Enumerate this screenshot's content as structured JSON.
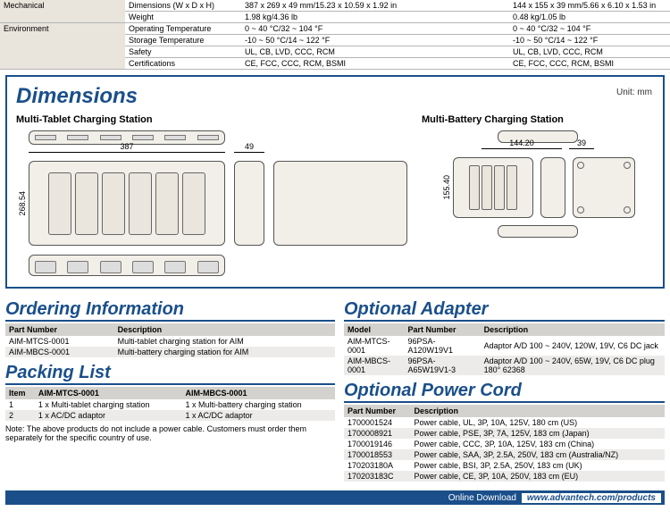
{
  "spec": {
    "rows": [
      {
        "cat": "Mechanical",
        "label": "Dimensions (W x D x H)",
        "v1": "387 x 269 x 49 mm/15.23 x 10.59 x 1.92 in",
        "v2": "144 x 155 x 39 mm/5.66 x 6.10 x 1.53 in"
      },
      {
        "cat": "",
        "label": "Weight",
        "v1": "1.98 kg/4.36 lb",
        "v2": "0.48 kg/1.05 lb"
      },
      {
        "cat": "Environment",
        "label": "Operating Temperature",
        "v1": "0 ~ 40 °C/32 ~ 104 °F",
        "v2": "0 ~ 40 °C/32 ~ 104 °F"
      },
      {
        "cat": "",
        "label": "Storage Temperature",
        "v1": "-10 ~ 50 °C/14 ~ 122 °F",
        "v2": "-10 ~ 50 °C/14 ~ 122 °F"
      },
      {
        "cat": "",
        "label": "Safety",
        "v1": "UL, CB, LVD, CCC, RCM",
        "v2": "UL, CB, LVD, CCC, RCM"
      },
      {
        "cat": "",
        "label": "Certifications",
        "v1": "CE, FCC, CCC, RCM, BSMI",
        "v2": "CE, FCC, CCC, RCM, BSMI"
      }
    ]
  },
  "dim": {
    "title": "Dimensions",
    "unit": "Unit: mm",
    "sub1": "Multi-Tablet Charging Station",
    "sub2": "Multi-Battery Charging Station",
    "w1": "387",
    "d1": "49",
    "h1": "268.54",
    "w2": "144.20",
    "d2": "39",
    "h2": "155.40"
  },
  "ordering": {
    "title": "Ordering Information",
    "cols": [
      "Part Number",
      "Description"
    ],
    "rows": [
      [
        "AIM-MTCS-0001",
        "Multi-tablet charging station for AIM"
      ],
      [
        "AIM-MBCS-0001",
        "Multi-battery charging station for AIM"
      ]
    ]
  },
  "adapter": {
    "title": "Optional Adapter",
    "cols": [
      "Model",
      "Part Number",
      "Description"
    ],
    "rows": [
      [
        "AIM-MTCS-0001",
        "96PSA-A120W19V1",
        "Adaptor A/D 100 ~ 240V, 120W, 19V, C6 DC jack"
      ],
      [
        "AIM-MBCS-0001",
        "96PSA-A65W19V1-3",
        "Adaptor A/D 100 ~ 240V, 65W, 19V, C6 DC plug 180° 62368"
      ]
    ]
  },
  "packing": {
    "title": "Packing List",
    "cols": [
      "Item",
      "AIM-MTCS-0001",
      "AIM-MBCS-0001"
    ],
    "rows": [
      [
        "1",
        "1 x Multi-tablet charging station",
        "1 x Multi-battery charging station"
      ],
      [
        "2",
        "1 x AC/DC adaptor",
        "1 x AC/DC adaptor"
      ]
    ],
    "note": "Note: The above products do not include a power cable. Customers must order them separately for the specific country of use."
  },
  "cord": {
    "title": "Optional Power Cord",
    "cols": [
      "Part Number",
      "Description"
    ],
    "rows": [
      [
        "1700001524",
        "Power cable, UL, 3P, 10A, 125V, 180 cm (US)"
      ],
      [
        "1700008921",
        "Power cable, PSE, 3P, 7A, 125V, 183 cm (Japan)"
      ],
      [
        "1700019146",
        "Power cable, CCC, 3P, 10A, 125V, 183 cm (China)"
      ],
      [
        "1700018553",
        "Power cable, SAA, 3P, 2.5A, 250V, 183 cm (Australia/NZ)"
      ],
      [
        "170203180A",
        "Power cable, BSI, 3P, 2.5A, 250V, 183 cm (UK)"
      ],
      [
        "170203183C",
        "Power cable, CE, 3P, 10A, 250V, 183 cm (EU)"
      ]
    ]
  },
  "footer": {
    "label": "Online Download",
    "url": "www.advantech.com/products"
  }
}
